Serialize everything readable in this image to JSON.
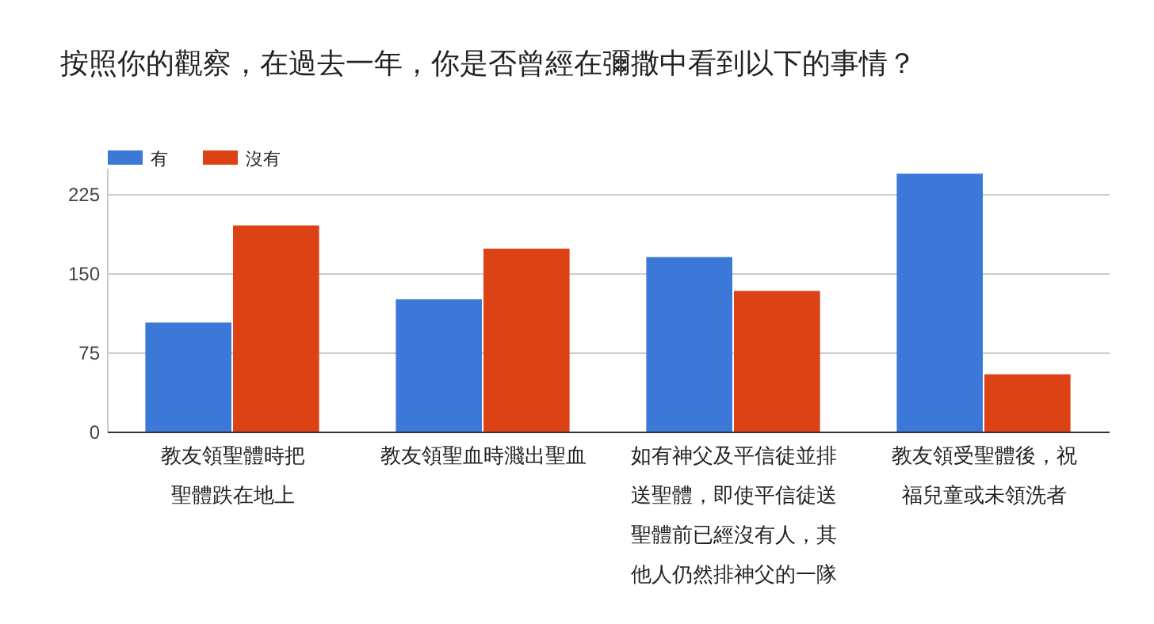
{
  "chart_data": {
    "type": "bar",
    "title": "按照你的觀察，在過去一年，你是否曾經在彌撒中看到以下的事情？",
    "categories": [
      "教友領聖體時把聖體跌在地上",
      "教友領聖血時濺出聖血",
      "如有神父及平信徒並排送聖體，即使平信徒送聖體前已經沒有人，其他人仍然排神父的一隊",
      "教友領受聖體後，祝福兒童或未領洗者"
    ],
    "series": [
      {
        "name": "有",
        "color": "#3c78d8",
        "values": [
          104,
          126,
          166,
          245
        ]
      },
      {
        "name": "沒有",
        "color": "#dc4214",
        "values": [
          196,
          174,
          134,
          55
        ]
      }
    ],
    "ylim": [
      0,
      250
    ],
    "yticks": [
      0,
      75,
      150,
      225
    ],
    "grid": "y",
    "legend": "top left"
  }
}
